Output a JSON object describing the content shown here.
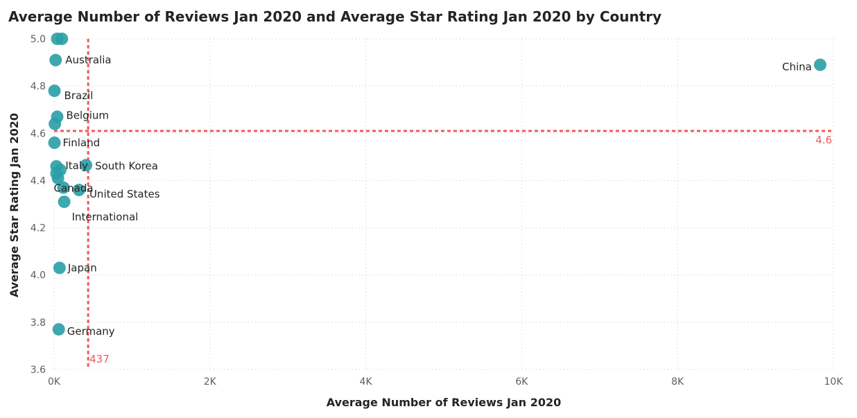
{
  "chart_data": {
    "type": "scatter",
    "title": "Average Number of Reviews Jan 2020 and Average Star Rating Jan 2020 by Country",
    "xlabel": "Average Number of Reviews Jan 2020",
    "ylabel": "Average Star Rating Jan 2020",
    "xlim": [
      0,
      10000
    ],
    "ylim": [
      3.6,
      5.0
    ],
    "x_ticks": [
      0,
      2000,
      4000,
      6000,
      8000,
      10000
    ],
    "x_tick_labels": [
      "0K",
      "2K",
      "4K",
      "6K",
      "8K",
      "10K"
    ],
    "y_ticks": [
      3.6,
      3.8,
      4.0,
      4.2,
      4.4,
      4.6,
      4.8,
      5.0
    ],
    "y_tick_labels": [
      "3.6",
      "3.8",
      "4.0",
      "4.2",
      "4.4",
      "4.6",
      "4.8",
      "5.0"
    ],
    "grid": true,
    "point_color": "#2a9ea6",
    "reference_color": "#f05a5a",
    "points": [
      {
        "label": "",
        "x": 40,
        "y": 5.0
      },
      {
        "label": "",
        "x": 100,
        "y": 5.0
      },
      {
        "label": "Australia",
        "x": 20,
        "y": 4.91
      },
      {
        "label": "Brazil",
        "x": 5,
        "y": 4.78
      },
      {
        "label": "Belgium",
        "x": 40,
        "y": 4.67
      },
      {
        "label": "",
        "x": 10,
        "y": 4.64
      },
      {
        "label": "Finland",
        "x": 5,
        "y": 4.56
      },
      {
        "label": "Italy",
        "x": 30,
        "y": 4.46
      },
      {
        "label": "",
        "x": 30,
        "y": 4.43
      },
      {
        "label": "",
        "x": 80,
        "y": 4.445
      },
      {
        "label": "",
        "x": 50,
        "y": 4.41
      },
      {
        "label": "South Korea",
        "x": 410,
        "y": 4.465
      },
      {
        "label": "Canada",
        "x": 120,
        "y": 4.37
      },
      {
        "label": "United States",
        "x": 320,
        "y": 4.36
      },
      {
        "label": "International",
        "x": 130,
        "y": 4.31
      },
      {
        "label": "Japan",
        "x": 70,
        "y": 4.03
      },
      {
        "label": "Germany",
        "x": 60,
        "y": 3.77
      },
      {
        "label": "China",
        "x": 9830,
        "y": 4.89
      }
    ],
    "reference_lines": [
      {
        "axis": "y",
        "value": 4.61,
        "label": "4.6"
      },
      {
        "axis": "x",
        "value": 437,
        "label": "437"
      }
    ]
  }
}
